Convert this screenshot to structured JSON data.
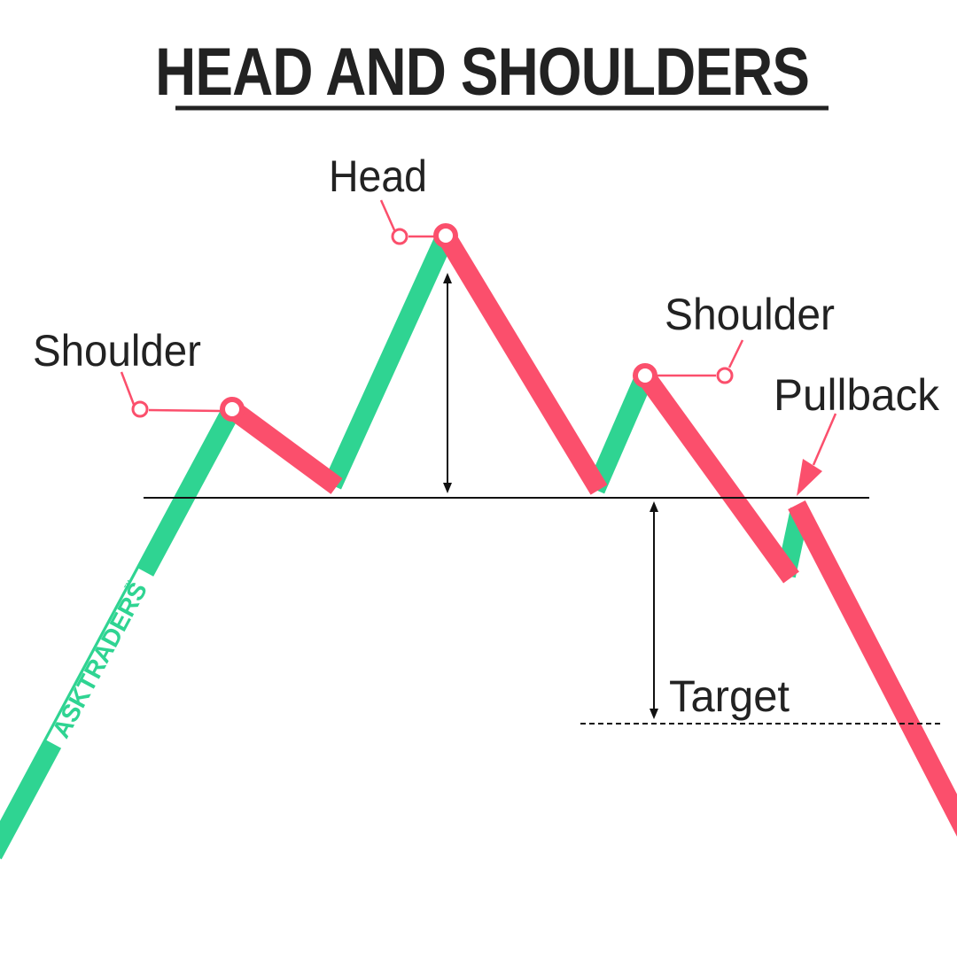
{
  "title": "HEAD AND SHOULDERS",
  "labels": {
    "left_shoulder": "Shoulder",
    "head": "Head",
    "right_shoulder": "Shoulder",
    "pullback": "Pullback",
    "target": "Target"
  },
  "watermark": "ASKTRADERS",
  "watermark_mark": "™",
  "colors": {
    "up_leg": "#2fd492",
    "down_leg": "#fb4f6c",
    "text": "#222222",
    "lines": "#111111"
  }
}
